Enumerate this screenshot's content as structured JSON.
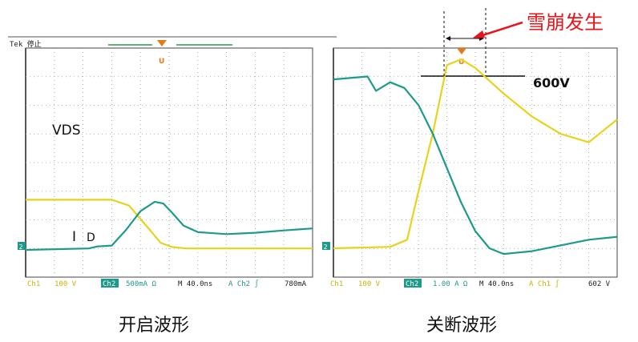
{
  "annotation": {
    "label": "雪崩发生",
    "color": "#e8141c"
  },
  "chart_data": [
    {
      "type": "line",
      "caption": "开启波形",
      "scope_header": "Tek 停止",
      "grid": true,
      "divisions": {
        "x": 10,
        "y": 8
      },
      "status_bar": {
        "ch1": "Ch1",
        "ch1_scale": "100 V",
        "ch2": "Ch2",
        "ch2_scale": "500mA Ω",
        "timebase": "M 40.0ns",
        "trigger_label": "A Ch2 ∫",
        "trigger_level": "780mA"
      },
      "series": [
        {
          "name": "VDS",
          "color": "#e8d21c",
          "x": [
            0,
            3.0,
            3.6,
            4.2,
            4.7,
            5.1,
            5.6,
            10
          ],
          "y": [
            1.75,
            1.75,
            1.55,
            0.85,
            0.25,
            0.1,
            0.05,
            0.05
          ]
        },
        {
          "name": "I",
          "subscript": "D",
          "color": "#1d9a8a",
          "x": [
            0,
            2.2,
            2.5,
            3.0,
            3.5,
            4.0,
            4.5,
            4.8,
            5.1,
            5.5,
            6.0,
            7.0,
            8.0,
            9.0,
            10
          ],
          "y": [
            0.0,
            0.05,
            0.12,
            0.15,
            0.7,
            1.35,
            1.68,
            1.62,
            1.3,
            0.85,
            0.62,
            0.55,
            0.6,
            0.68,
            0.75
          ]
        }
      ]
    },
    {
      "type": "line",
      "caption": "关断波形",
      "grid": true,
      "divisions": {
        "x": 10,
        "y": 8
      },
      "reference_label": "600V",
      "status_bar": {
        "ch1": "Ch1",
        "ch1_scale": "100 V",
        "ch2": "Ch2",
        "ch2_scale": "1.00 A Ω",
        "timebase": "M 40.0ns",
        "trigger_label": "A Ch1 ∫",
        "trigger_level": "602 V"
      },
      "series": [
        {
          "name": "Ch1",
          "color": "#e8d21c",
          "x": [
            0,
            2.0,
            2.6,
            3.0,
            3.5,
            4.0,
            4.5,
            5.0,
            6.0,
            7.0,
            8.0,
            9.0,
            10
          ],
          "y": [
            0.0,
            0.05,
            0.3,
            2.0,
            4.0,
            6.4,
            6.6,
            6.3,
            5.4,
            4.6,
            4.0,
            3.7,
            4.5
          ]
        },
        {
          "name": "Ch2",
          "color": "#1d9a8a",
          "x": [
            0,
            1.2,
            1.5,
            2.0,
            2.5,
            3.0,
            3.5,
            4.0,
            4.5,
            5.0,
            5.5,
            6.0,
            7.0,
            8.0,
            9.0,
            10
          ],
          "y": [
            5.9,
            6.0,
            5.5,
            5.8,
            5.6,
            5.0,
            4.0,
            2.8,
            1.6,
            0.6,
            0.0,
            -0.2,
            -0.1,
            0.1,
            0.3,
            0.4
          ]
        }
      ]
    }
  ]
}
